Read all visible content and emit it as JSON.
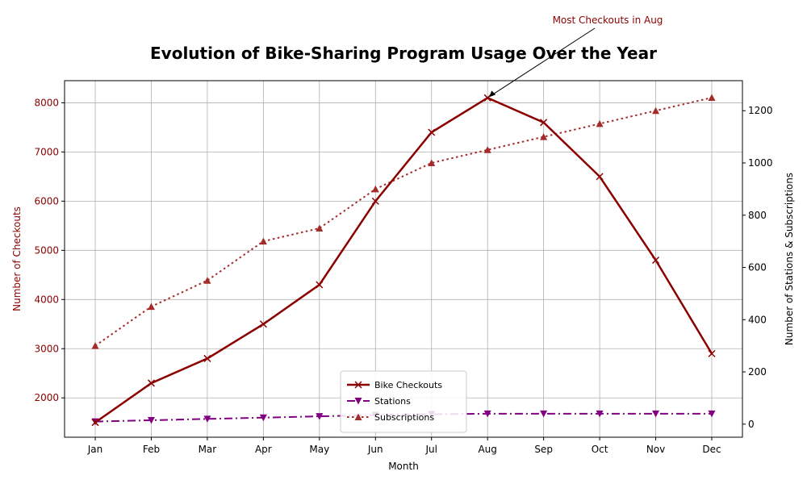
{
  "chart_data": {
    "type": "line",
    "title": "Evolution of Bike-Sharing Program Usage Over the Year",
    "xlabel": "Month",
    "ylabel_left": "Number of Checkouts",
    "ylabel_right": "Number of Stations & Subscriptions",
    "categories": [
      "Jan",
      "Feb",
      "Mar",
      "Apr",
      "May",
      "Jun",
      "Jul",
      "Aug",
      "Sep",
      "Oct",
      "Nov",
      "Dec"
    ],
    "ylim_left": [
      1200,
      8450
    ],
    "ylim_right": [
      -50,
      1315
    ],
    "yticks_left": [
      2000,
      3000,
      4000,
      5000,
      6000,
      7000,
      8000
    ],
    "yticks_right": [
      0,
      200,
      400,
      600,
      800,
      1000,
      1200
    ],
    "grid": true,
    "legend_position": "lower center",
    "series": [
      {
        "name": "Bike Checkouts",
        "axis": "left",
        "color": "#8b0000",
        "line_style": "solid",
        "marker": "x",
        "values": [
          1500,
          2300,
          2800,
          3500,
          4300,
          6000,
          7400,
          8100,
          7600,
          6500,
          4800,
          2900
        ]
      },
      {
        "name": "Stations",
        "axis": "right",
        "color": "#800080",
        "line_style": "dashdot",
        "marker": "triangle-down",
        "values": [
          10,
          15,
          20,
          25,
          30,
          35,
          38,
          40,
          40,
          40,
          40,
          40
        ]
      },
      {
        "name": "Subscriptions",
        "axis": "right",
        "color": "#a52a2a",
        "line_style": "dotted",
        "marker": "triangle-up",
        "values": [
          300,
          450,
          550,
          700,
          750,
          900,
          1000,
          1050,
          1100,
          1150,
          1200,
          1250
        ]
      }
    ],
    "annotation": {
      "text": "Most Checkouts in Aug",
      "color": "#8b0000",
      "point_category": "Aug",
      "point_value": 8100
    }
  }
}
